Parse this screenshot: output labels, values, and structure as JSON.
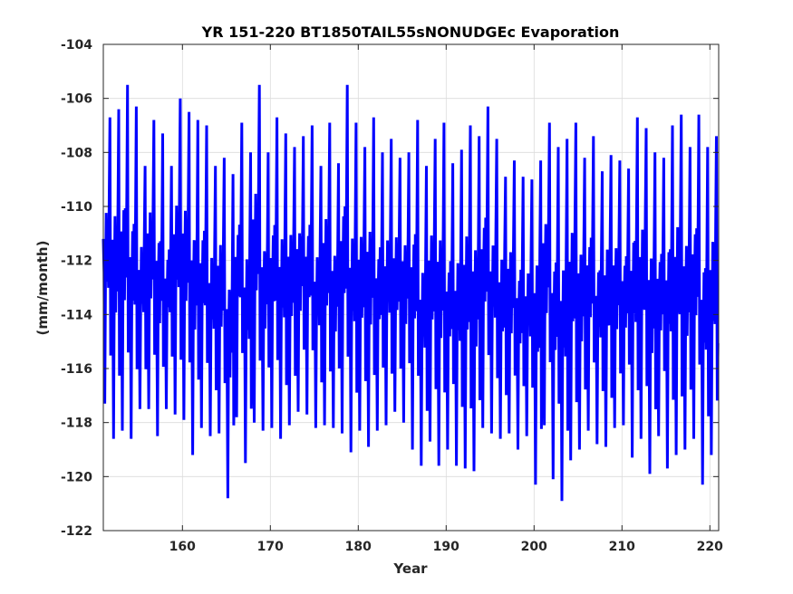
{
  "chart_data": {
    "type": "line",
    "title": "YR 151-220 BT1850TAIL55sNONUDGEc Evaporation",
    "xlabel": "Year",
    "ylabel": "(mm/month)",
    "xlim": [
      151,
      221
    ],
    "ylim": [
      -122,
      -104
    ],
    "xticks": [
      160,
      170,
      180,
      190,
      200,
      210,
      220
    ],
    "xtick_labels": [
      "160",
      "170",
      "180",
      "190",
      "200",
      "210",
      "220"
    ],
    "yticks": [
      -122,
      -120,
      -118,
      -116,
      -114,
      -112,
      -110,
      -108,
      -106,
      -104
    ],
    "ytick_labels": [
      "-122",
      "-120",
      "-118",
      "-116",
      "-114",
      "-112",
      "-110",
      "-108",
      "-106",
      "-104"
    ],
    "grid": true,
    "series": [
      {
        "color": "#0000ff",
        "x_start": 151,
        "x_step": 0.08333,
        "annual_peaks": [
          -106.7,
          -106.4,
          -105.5,
          -106.3,
          -108.5,
          -106.8,
          -107.3,
          -108.5,
          -106.0,
          -106.5,
          -106.8,
          -107.0,
          -108.5,
          -108.2,
          -108.8,
          -106.9,
          -108.0,
          -105.5,
          -108.0,
          -106.7,
          -107.3,
          -107.8,
          -107.4,
          -107.0,
          -108.5,
          -106.9,
          -108.4,
          -105.5,
          -106.9,
          -107.8,
          -106.7,
          -108.0,
          -107.5,
          -108.2,
          -108.0,
          -106.8,
          -108.5,
          -107.5,
          -106.9,
          -108.4,
          -107.9,
          -107.0,
          -107.4,
          -106.3,
          -107.5,
          -108.9,
          -108.3,
          -108.9,
          -109.0,
          -108.3,
          -106.9,
          -107.8,
          -107.5,
          -106.9,
          -108.2,
          -107.4,
          -108.7,
          -108.1,
          -108.3,
          -108.6,
          -106.7,
          -107.1,
          -108.0,
          -108.2,
          -107.0,
          -106.6,
          -107.8,
          -106.6,
          -107.8,
          -107.4
        ],
        "annual_troughs": [
          -117.3,
          -118.6,
          -118.3,
          -118.6,
          -117.5,
          -117.5,
          -118.5,
          -117.5,
          -117.7,
          -117.9,
          -119.2,
          -118.2,
          -118.5,
          -118.4,
          -120.8,
          -117.8,
          -119.5,
          -118.0,
          -118.3,
          -118.2,
          -118.6,
          -118.1,
          -117.6,
          -117.7,
          -118.2,
          -118.1,
          -118.2,
          -118.4,
          -119.1,
          -118.3,
          -118.9,
          -118.3,
          -118.1,
          -117.6,
          -118.0,
          -119.0,
          -119.6,
          -118.7,
          -119.6,
          -119.0,
          -119.6,
          -119.7,
          -119.8,
          -118.2,
          -118.4,
          -118.6,
          -118.4,
          -119.0,
          -118.5,
          -120.3,
          -118.1,
          -120.1,
          -120.9,
          -119.4,
          -119.0,
          -118.3,
          -118.8,
          -118.9,
          -118.2,
          -118.1,
          -119.3,
          -118.6,
          -119.9,
          -118.5,
          -119.7,
          -119.2,
          -119.0,
          -118.6,
          -120.3,
          -119.2
        ]
      }
    ]
  }
}
